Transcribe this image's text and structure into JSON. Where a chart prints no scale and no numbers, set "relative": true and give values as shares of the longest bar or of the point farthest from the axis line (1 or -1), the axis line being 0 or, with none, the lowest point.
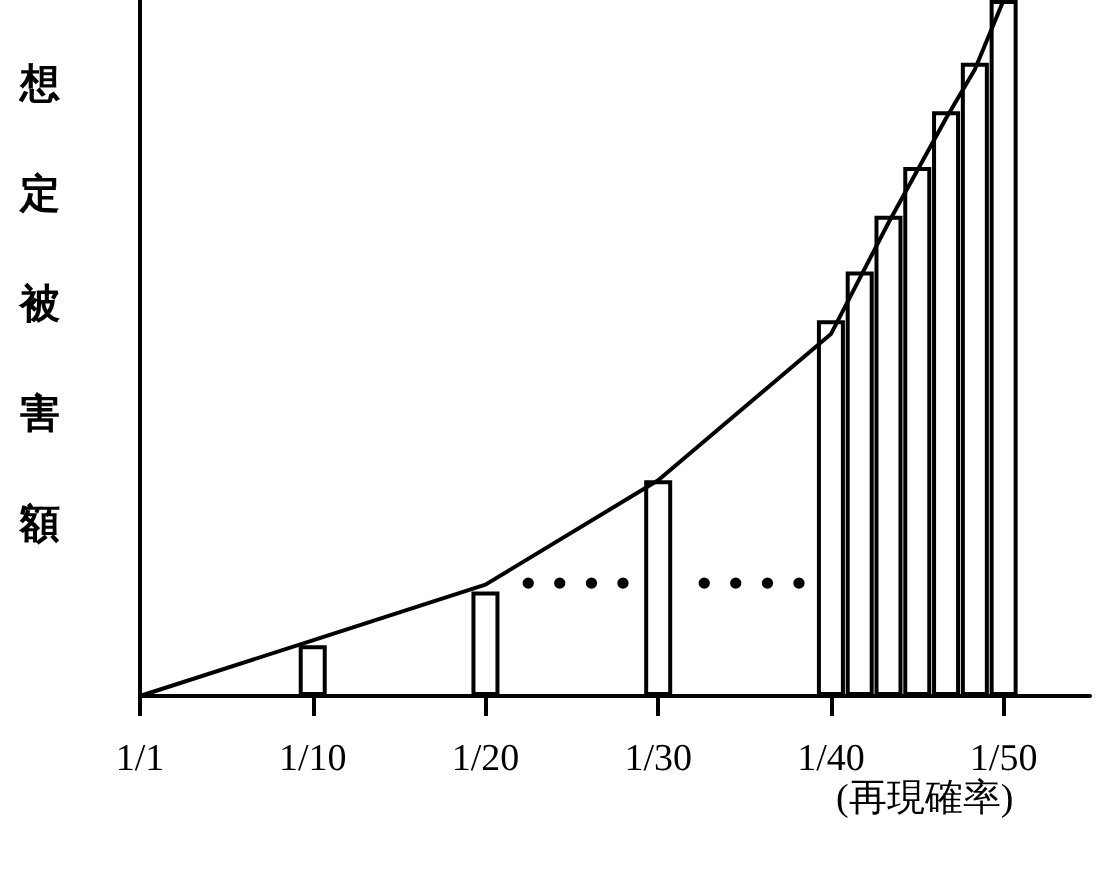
{
  "chart_data": {
    "type": "bar",
    "relative": true,
    "ylabel": "想定被害額",
    "xlabel": "(再現確率)",
    "annotations": [
      "• • • •",
      "• • • •"
    ],
    "categories": [
      "1/1",
      null,
      null,
      null,
      null,
      null,
      "1/10",
      null,
      null,
      null,
      null,
      null,
      "1/20",
      null,
      null,
      null,
      null,
      null,
      "1/30",
      null,
      null,
      null,
      null,
      null,
      "1/40",
      null,
      null,
      null,
      null,
      null,
      "1/50",
      null,
      null,
      null
    ],
    "series": [
      {
        "color": "#ffffff",
        "values": [
          null,
          null,
          null,
          null,
          null,
          null,
          0.073,
          null,
          null,
          null,
          null,
          null,
          0.15,
          null,
          null,
          null,
          null,
          null,
          0.31,
          null,
          null,
          null,
          null,
          null,
          0.54,
          0.61,
          0.69,
          0.76,
          0.84,
          0.91,
          1,
          null,
          null,
          null
        ]
      },
      {
        "type": "line",
        "color": "#000000",
        "values": [
          0,
          null,
          null,
          null,
          null,
          null,
          0.08,
          null,
          null,
          null,
          null,
          null,
          0.16,
          null,
          null,
          null,
          null,
          null,
          0.31,
          null,
          null,
          null,
          null,
          null,
          0.52,
          0.6,
          0.68,
          0.755,
          0.83,
          0.9,
          1,
          null,
          null,
          null
        ]
      }
    ],
    "grid": false,
    "marker": "none"
  }
}
